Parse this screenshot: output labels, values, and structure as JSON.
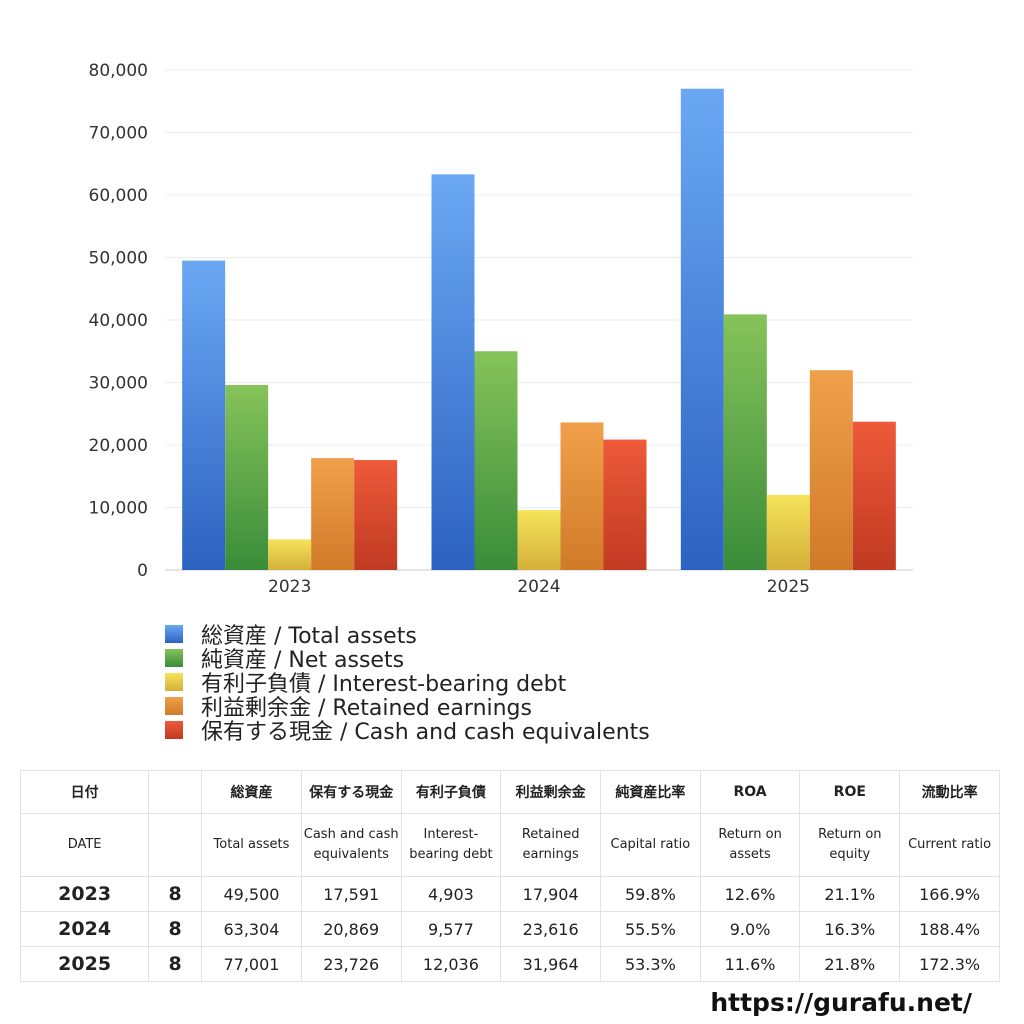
{
  "chart_data": {
    "type": "bar",
    "categories": [
      "2023",
      "2024",
      "2025"
    ],
    "ylim": [
      0,
      80000
    ],
    "yticks": [
      "0",
      "10,000",
      "20,000",
      "30,000",
      "40,000",
      "50,000",
      "60,000",
      "70,000",
      "80,000"
    ],
    "series": [
      {
        "name": "総資産 / Total assets",
        "values": [
          49500,
          63304,
          77001
        ],
        "color_top": "#6aa8f3",
        "color_bottom": "#2d62c1"
      },
      {
        "name": "純資産 / Net assets",
        "values": [
          29600,
          35000,
          40900
        ],
        "color_top": "#86c35a",
        "color_bottom": "#3a8c3a"
      },
      {
        "name": "有利子負債 / Interest-bearing debt",
        "values": [
          4903,
          9577,
          12036
        ],
        "color_top": "#f5e35a",
        "color_bottom": "#d4b03a"
      },
      {
        "name": "利益剰余金 / Retained earnings",
        "values": [
          17904,
          23616,
          31964
        ],
        "color_top": "#f0a04a",
        "color_bottom": "#d07a2a"
      },
      {
        "name": "保有する現金 /  Cash and cash equivalents",
        "values": [
          17591,
          20869,
          23726
        ],
        "color_top": "#ee5a3a",
        "color_bottom": "#c03a22"
      }
    ],
    "legend_position": "bottom",
    "grid": true
  },
  "table": {
    "header_jp": [
      "日付",
      "",
      "総資産",
      "保有する現金",
      "有利子負債",
      "利益剰余金",
      "純資産比率",
      "ROA",
      "ROE",
      "流動比率"
    ],
    "header_en": [
      "DATE",
      "",
      "Total assets",
      "Cash and cash equivalents",
      "Interest-bearing debt",
      "Retained earnings",
      "Capital ratio",
      "Return on assets",
      "Return on equity",
      "Current ratio"
    ],
    "rows": [
      [
        "2023",
        "8",
        "49,500",
        "17,591",
        "4,903",
        "17,904",
        "59.8%",
        "12.6%",
        "21.1%",
        "166.9%"
      ],
      [
        "2024",
        "8",
        "63,304",
        "20,869",
        "9,577",
        "23,616",
        "55.5%",
        "9.0%",
        "16.3%",
        "188.4%"
      ],
      [
        "2025",
        "8",
        "77,001",
        "23,726",
        "12,036",
        "31,964",
        "53.3%",
        "11.6%",
        "21.8%",
        "172.3%"
      ]
    ]
  },
  "footer": {
    "url": "https://gurafu.net/"
  }
}
